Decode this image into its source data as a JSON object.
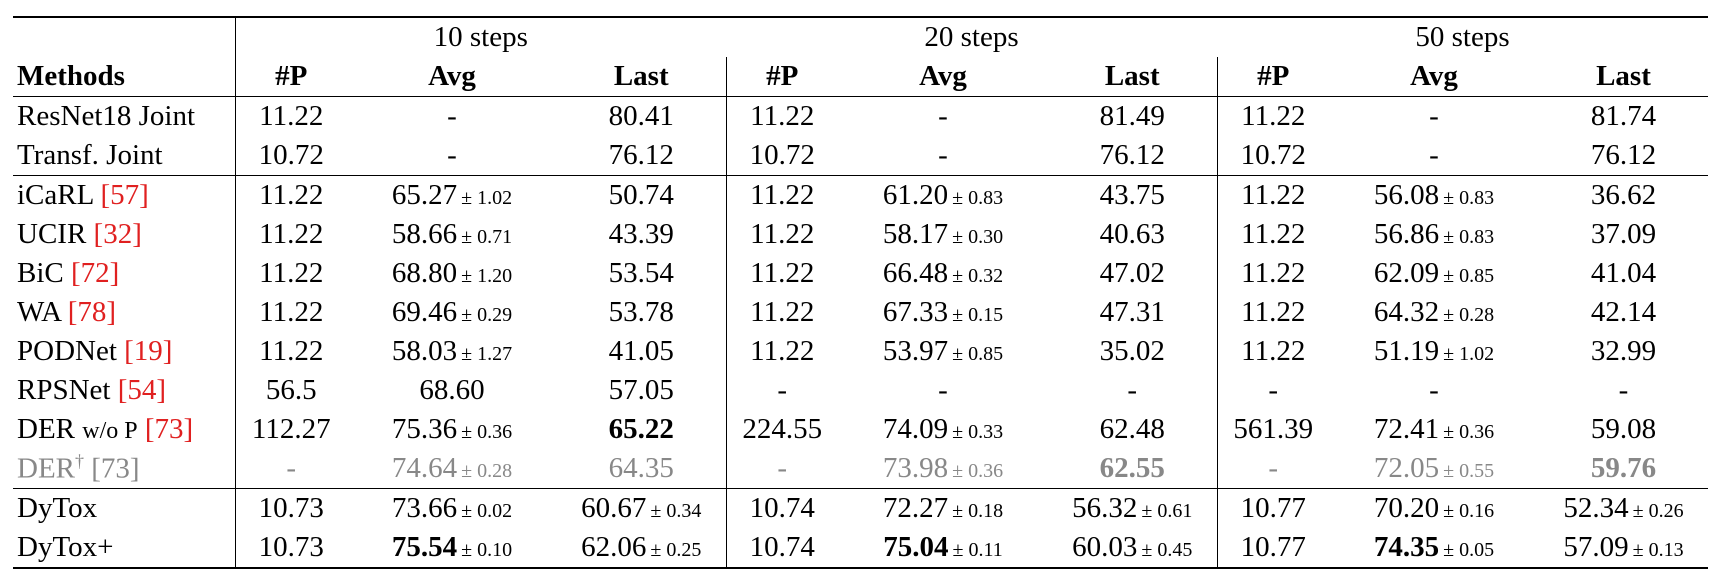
{
  "header": {
    "groups": [
      "10 steps",
      "20 steps",
      "50 steps"
    ],
    "columns": [
      "Methods",
      "#P",
      "Avg",
      "Last",
      "#P",
      "Avg",
      "Last",
      "#P",
      "Avg",
      "Last"
    ]
  },
  "sections": [
    {
      "rows": [
        {
          "method": "ResNet18 Joint",
          "cells": [
            {
              "v": "11.22"
            },
            {
              "v": "-"
            },
            {
              "v": "80.41"
            },
            {
              "v": "11.22"
            },
            {
              "v": "-"
            },
            {
              "v": "81.49"
            },
            {
              "v": "11.22"
            },
            {
              "v": "-"
            },
            {
              "v": "81.74"
            }
          ]
        },
        {
          "method": "Transf. Joint",
          "cells": [
            {
              "v": "10.72"
            },
            {
              "v": "-"
            },
            {
              "v": "76.12"
            },
            {
              "v": "10.72"
            },
            {
              "v": "-"
            },
            {
              "v": "76.12"
            },
            {
              "v": "10.72"
            },
            {
              "v": "-"
            },
            {
              "v": "76.12"
            }
          ]
        }
      ]
    },
    {
      "rows": [
        {
          "method": "iCaRL",
          "ref": "[57]",
          "cells": [
            {
              "v": "11.22"
            },
            {
              "v": "65.27",
              "std": "± 1.02"
            },
            {
              "v": "50.74"
            },
            {
              "v": "11.22"
            },
            {
              "v": "61.20",
              "std": "± 0.83"
            },
            {
              "v": "43.75"
            },
            {
              "v": "11.22"
            },
            {
              "v": "56.08",
              "std": "± 0.83"
            },
            {
              "v": "36.62"
            }
          ]
        },
        {
          "method": "UCIR",
          "ref": "[32]",
          "cells": [
            {
              "v": "11.22"
            },
            {
              "v": "58.66",
              "std": "± 0.71"
            },
            {
              "v": "43.39"
            },
            {
              "v": "11.22"
            },
            {
              "v": "58.17",
              "std": "± 0.30"
            },
            {
              "v": "40.63"
            },
            {
              "v": "11.22"
            },
            {
              "v": "56.86",
              "std": "± 0.83"
            },
            {
              "v": "37.09"
            }
          ]
        },
        {
          "method": "BiC",
          "ref": "[72]",
          "cells": [
            {
              "v": "11.22"
            },
            {
              "v": "68.80",
              "std": "± 1.20"
            },
            {
              "v": "53.54"
            },
            {
              "v": "11.22"
            },
            {
              "v": "66.48",
              "std": "± 0.32"
            },
            {
              "v": "47.02"
            },
            {
              "v": "11.22"
            },
            {
              "v": "62.09",
              "std": "± 0.85"
            },
            {
              "v": "41.04"
            }
          ]
        },
        {
          "method": "WA",
          "ref": "[78]",
          "cells": [
            {
              "v": "11.22"
            },
            {
              "v": "69.46",
              "std": "± 0.29"
            },
            {
              "v": "53.78"
            },
            {
              "v": "11.22"
            },
            {
              "v": "67.33",
              "std": "± 0.15"
            },
            {
              "v": "47.31"
            },
            {
              "v": "11.22"
            },
            {
              "v": "64.32",
              "std": "± 0.28"
            },
            {
              "v": "42.14"
            }
          ]
        },
        {
          "method": "PODNet",
          "ref": "[19]",
          "cells": [
            {
              "v": "11.22"
            },
            {
              "v": "58.03",
              "std": "± 1.27"
            },
            {
              "v": "41.05"
            },
            {
              "v": "11.22"
            },
            {
              "v": "53.97",
              "std": "± 0.85"
            },
            {
              "v": "35.02"
            },
            {
              "v": "11.22"
            },
            {
              "v": "51.19",
              "std": "± 1.02"
            },
            {
              "v": "32.99"
            }
          ]
        },
        {
          "method": "RPSNet",
          "ref": "[54]",
          "cells": [
            {
              "v": "56.5"
            },
            {
              "v": "68.60"
            },
            {
              "v": "57.05"
            },
            {
              "v": "-"
            },
            {
              "v": "-"
            },
            {
              "v": "-"
            },
            {
              "v": "-"
            },
            {
              "v": "-"
            },
            {
              "v": "-"
            }
          ]
        },
        {
          "method": "DER",
          "small": "w/o P",
          "ref": "[73]",
          "cells": [
            {
              "v": "112.27"
            },
            {
              "v": "75.36",
              "std": "± 0.36"
            },
            {
              "v": "65.22",
              "bold": true
            },
            {
              "v": "224.55"
            },
            {
              "v": "74.09",
              "std": "± 0.33"
            },
            {
              "v": "62.48"
            },
            {
              "v": "561.39"
            },
            {
              "v": "72.41",
              "std": "± 0.36"
            },
            {
              "v": "59.08"
            }
          ]
        },
        {
          "method": "DER",
          "sup": "†",
          "ref": "[73]",
          "gray": true,
          "cells": [
            {
              "v": "-"
            },
            {
              "v": "74.64",
              "std": "± 0.28"
            },
            {
              "v": "64.35"
            },
            {
              "v": "-"
            },
            {
              "v": "73.98",
              "std": "± 0.36"
            },
            {
              "v": "62.55",
              "bold": true
            },
            {
              "v": "-"
            },
            {
              "v": "72.05",
              "std": "± 0.55"
            },
            {
              "v": "59.76",
              "bold": true
            }
          ]
        }
      ]
    },
    {
      "rows": [
        {
          "method": "DyTox",
          "cells": [
            {
              "v": "10.73"
            },
            {
              "v": "73.66",
              "std": "± 0.02"
            },
            {
              "v": "60.67",
              "std": "± 0.34"
            },
            {
              "v": "10.74"
            },
            {
              "v": "72.27",
              "std": "± 0.18"
            },
            {
              "v": "56.32",
              "std": "± 0.61"
            },
            {
              "v": "10.77"
            },
            {
              "v": "70.20",
              "std": "± 0.16"
            },
            {
              "v": "52.34",
              "std": "± 0.26"
            }
          ]
        },
        {
          "method": "DyTox+",
          "cells": [
            {
              "v": "10.73"
            },
            {
              "v": "75.54",
              "std": "± 0.10",
              "bold": true
            },
            {
              "v": "62.06",
              "std": "± 0.25"
            },
            {
              "v": "10.74"
            },
            {
              "v": "75.04",
              "std": "± 0.11",
              "bold": true
            },
            {
              "v": "60.03",
              "std": "± 0.45"
            },
            {
              "v": "10.77"
            },
            {
              "v": "74.35",
              "std": "± 0.05",
              "bold": true
            },
            {
              "v": "57.09",
              "std": "± 0.13"
            }
          ]
        }
      ]
    }
  ]
}
